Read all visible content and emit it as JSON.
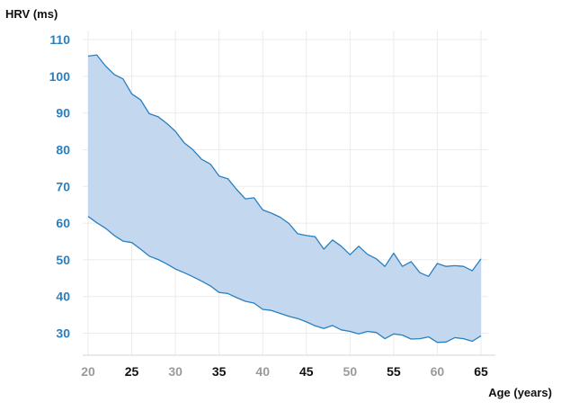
{
  "chart_data": {
    "type": "area",
    "title": "",
    "ylabel": "HRV (ms)",
    "xlabel": "Age (years)",
    "xlim": [
      20,
      65
    ],
    "ylim": [
      24,
      110
    ],
    "grid": true,
    "x_ticks": [
      20,
      25,
      30,
      35,
      40,
      45,
      50,
      55,
      60,
      65
    ],
    "y_ticks": [
      30,
      40,
      50,
      60,
      70,
      80,
      90,
      100,
      110
    ],
    "x_tick_colors": [
      "#9a9a9a",
      "#111111",
      "#9a9a9a",
      "#111111",
      "#9a9a9a",
      "#111111",
      "#9a9a9a",
      "#111111",
      "#9a9a9a",
      "#111111"
    ],
    "colors": {
      "band_fill": "#c3d8ef",
      "band_line": "#2a7fc0",
      "y_tick_text": "#2a7fc0",
      "grid": "#ebebeb"
    },
    "x": [
      20,
      21,
      22,
      23,
      24,
      25,
      26,
      27,
      28,
      29,
      30,
      31,
      32,
      33,
      34,
      35,
      36,
      37,
      38,
      39,
      40,
      41,
      42,
      43,
      44,
      45,
      46,
      47,
      48,
      49,
      50,
      51,
      52,
      53,
      54,
      55,
      56,
      57,
      58,
      59,
      60,
      61,
      62,
      63,
      64,
      65
    ],
    "upper": [
      105.5,
      105.8,
      102.8,
      100.5,
      99.3,
      95.2,
      93.6,
      89.8,
      89.0,
      87.2,
      85.0,
      81.9,
      80.0,
      77.4,
      76.1,
      72.8,
      72.1,
      69.2,
      66.6,
      66.9,
      63.6,
      62.7,
      61.6,
      59.9,
      57.1,
      56.6,
      56.3,
      52.9,
      55.4,
      53.7,
      51.4,
      53.7,
      51.5,
      50.3,
      48.2,
      51.8,
      48.2,
      49.5,
      46.5,
      45.5,
      49.0,
      48.2,
      48.4,
      48.2,
      47.0,
      50.3
    ],
    "lower": [
      61.8,
      60.1,
      58.6,
      56.6,
      55.1,
      54.7,
      52.9,
      51.0,
      50.1,
      48.9,
      47.5,
      46.5,
      45.4,
      44.2,
      42.9,
      41.1,
      40.8,
      39.7,
      38.7,
      38.2,
      36.5,
      36.2,
      35.4,
      34.6,
      34.0,
      33.1,
      32.0,
      31.3,
      32.1,
      30.9,
      30.5,
      29.8,
      30.5,
      30.2,
      28.5,
      29.8,
      29.5,
      28.4,
      28.5,
      29.0,
      27.5,
      27.6,
      28.8,
      28.5,
      27.8,
      29.3
    ]
  }
}
